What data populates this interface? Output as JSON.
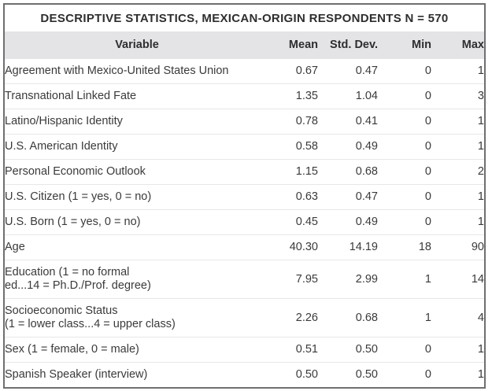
{
  "table": {
    "title": "DESCRIPTIVE STATISTICS, MEXICAN-ORIGIN RESPONDENTS N = 570",
    "columns": [
      "Variable",
      "Mean",
      "Std. Dev.",
      "Min",
      "Max"
    ],
    "rows": [
      {
        "variable_lines": [
          "Agreement with Mexico-United States Union"
        ],
        "mean": "0.67",
        "std_dev": "0.47",
        "min": "0",
        "max": "1"
      },
      {
        "variable_lines": [
          "Transnational Linked Fate"
        ],
        "mean": "1.35",
        "std_dev": "1.04",
        "min": "0",
        "max": "3"
      },
      {
        "variable_lines": [
          "Latino/Hispanic Identity"
        ],
        "mean": "0.78",
        "std_dev": "0.41",
        "min": "0",
        "max": "1"
      },
      {
        "variable_lines": [
          "U.S. American Identity"
        ],
        "mean": "0.58",
        "std_dev": "0.49",
        "min": "0",
        "max": "1"
      },
      {
        "variable_lines": [
          "Personal Economic Outlook"
        ],
        "mean": "1.15",
        "std_dev": "0.68",
        "min": "0",
        "max": "2"
      },
      {
        "variable_lines": [
          "U.S. Citizen (1 = yes, 0 = no)"
        ],
        "mean": "0.63",
        "std_dev": "0.47",
        "min": "0",
        "max": "1"
      },
      {
        "variable_lines": [
          "U.S. Born (1 = yes, 0 = no)"
        ],
        "mean": "0.45",
        "std_dev": "0.49",
        "min": "0",
        "max": "1"
      },
      {
        "variable_lines": [
          "Age"
        ],
        "mean": "40.30",
        "std_dev": "14.19",
        "min": "18",
        "max": "90"
      },
      {
        "variable_lines": [
          "Education (1 = no formal",
          "ed...14 = Ph.D./Prof. degree)"
        ],
        "mean": "7.95",
        "std_dev": "2.99",
        "min": "1",
        "max": "14"
      },
      {
        "variable_lines": [
          "Socioeconomic Status",
          "(1 = lower class...4 = upper class)"
        ],
        "mean": "2.26",
        "std_dev": "0.68",
        "min": "1",
        "max": "4"
      },
      {
        "variable_lines": [
          "Sex (1 = female, 0 = male)"
        ],
        "mean": "0.51",
        "std_dev": "0.50",
        "min": "0",
        "max": "1"
      },
      {
        "variable_lines": [
          "Spanish Speaker (interview)"
        ],
        "mean": "0.50",
        "std_dev": "0.50",
        "min": "0",
        "max": "1"
      }
    ]
  },
  "colors": {
    "header_background": "#e4e4e6",
    "outer_border": "#6f6f71",
    "row_divider": "#e7e7e9",
    "text": "#3a3a3c"
  }
}
